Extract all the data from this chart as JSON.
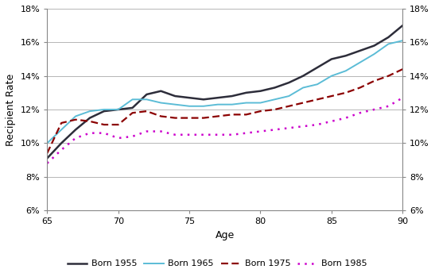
{
  "title": "",
  "xlabel": "Age",
  "ylabel": "Recipient Rate",
  "xlim": [
    65,
    90
  ],
  "ylim": [
    0.06,
    0.18
  ],
  "yticks": [
    0.06,
    0.08,
    0.1,
    0.12,
    0.14,
    0.16,
    0.18
  ],
  "xticks": [
    65,
    70,
    75,
    80,
    85,
    90
  ],
  "series": {
    "Born 1955": {
      "color": "#2d2d3a",
      "linestyle": "solid",
      "linewidth": 1.8,
      "x": [
        65,
        66,
        67,
        68,
        69,
        70,
        71,
        72,
        73,
        74,
        75,
        76,
        77,
        78,
        79,
        80,
        81,
        82,
        83,
        84,
        85,
        86,
        87,
        88,
        89,
        90
      ],
      "y": [
        0.091,
        0.1,
        0.108,
        0.115,
        0.119,
        0.12,
        0.121,
        0.129,
        0.131,
        0.128,
        0.127,
        0.126,
        0.127,
        0.128,
        0.13,
        0.131,
        0.133,
        0.136,
        0.14,
        0.145,
        0.15,
        0.152,
        0.155,
        0.158,
        0.163,
        0.17
      ]
    },
    "Born 1965": {
      "color": "#5bbcd6",
      "linestyle": "solid",
      "linewidth": 1.4,
      "x": [
        65,
        66,
        67,
        68,
        69,
        70,
        71,
        72,
        73,
        74,
        75,
        76,
        77,
        78,
        79,
        80,
        81,
        82,
        83,
        84,
        85,
        86,
        87,
        88,
        89,
        90
      ],
      "y": [
        0.1,
        0.108,
        0.116,
        0.119,
        0.12,
        0.12,
        0.126,
        0.126,
        0.124,
        0.123,
        0.122,
        0.122,
        0.123,
        0.123,
        0.124,
        0.124,
        0.126,
        0.128,
        0.133,
        0.135,
        0.14,
        0.143,
        0.148,
        0.153,
        0.159,
        0.161
      ]
    },
    "Born 1975": {
      "color": "#8b0000",
      "linestyle": "dashed",
      "linewidth": 1.6,
      "x": [
        65,
        66,
        67,
        68,
        69,
        70,
        71,
        72,
        73,
        74,
        75,
        76,
        77,
        78,
        79,
        80,
        81,
        82,
        83,
        84,
        85,
        86,
        87,
        88,
        89,
        90
      ],
      "y": [
        0.094,
        0.112,
        0.114,
        0.113,
        0.111,
        0.111,
        0.118,
        0.119,
        0.116,
        0.115,
        0.115,
        0.115,
        0.116,
        0.117,
        0.117,
        0.119,
        0.12,
        0.122,
        0.124,
        0.126,
        0.128,
        0.13,
        0.133,
        0.137,
        0.14,
        0.144
      ]
    },
    "Born 1985": {
      "color": "#cc00cc",
      "linestyle": "dotted",
      "linewidth": 1.8,
      "x": [
        65,
        66,
        67,
        68,
        69,
        70,
        71,
        72,
        73,
        74,
        75,
        76,
        77,
        78,
        79,
        80,
        81,
        82,
        83,
        84,
        85,
        86,
        87,
        88,
        89,
        90
      ],
      "y": [
        0.088,
        0.096,
        0.103,
        0.106,
        0.106,
        0.103,
        0.104,
        0.107,
        0.107,
        0.105,
        0.105,
        0.105,
        0.105,
        0.105,
        0.106,
        0.107,
        0.108,
        0.109,
        0.11,
        0.111,
        0.113,
        0.115,
        0.118,
        0.12,
        0.122,
        0.127
      ]
    }
  },
  "grid_yticks": [
    0.08,
    0.1,
    0.12,
    0.14,
    0.16,
    0.18
  ],
  "legend_labels": [
    "Born 1955",
    "Born 1965",
    "Born 1975",
    "Born 1985"
  ]
}
